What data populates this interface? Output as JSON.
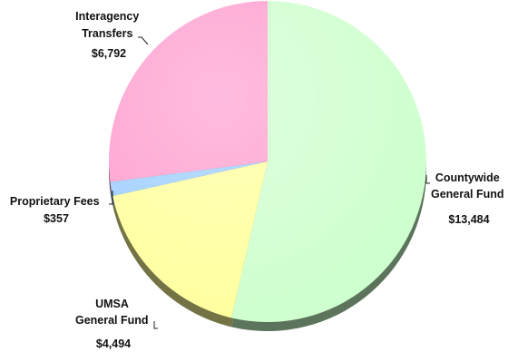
{
  "chart_data": {
    "type": "pie",
    "title": "",
    "slices": [
      {
        "label_lines": [
          "Countywide",
          "General Fund"
        ],
        "value_label": "$13,484",
        "value": 13484,
        "color": "#ccffcc"
      },
      {
        "label_lines": [
          "UMSA",
          "General Fund"
        ],
        "value_label": "$4,494",
        "value": 4494,
        "color": "#ffff99"
      },
      {
        "label_lines": [
          "Proprietary Fees"
        ],
        "value_label": "$357",
        "value": 357,
        "color": "#99ccff"
      },
      {
        "label_lines": [
          "Interagency",
          "Transfers"
        ],
        "value_label": "$6,792",
        "value": 6792,
        "color": "#ff99cc"
      }
    ]
  }
}
